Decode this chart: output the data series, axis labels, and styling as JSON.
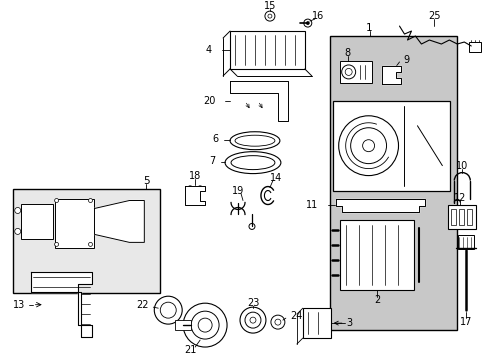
{
  "bg_color": "#ffffff",
  "line_color": "#000000",
  "gray_fill": "#c8c8c8",
  "fig_width": 4.89,
  "fig_height": 3.6,
  "dpi": 100
}
